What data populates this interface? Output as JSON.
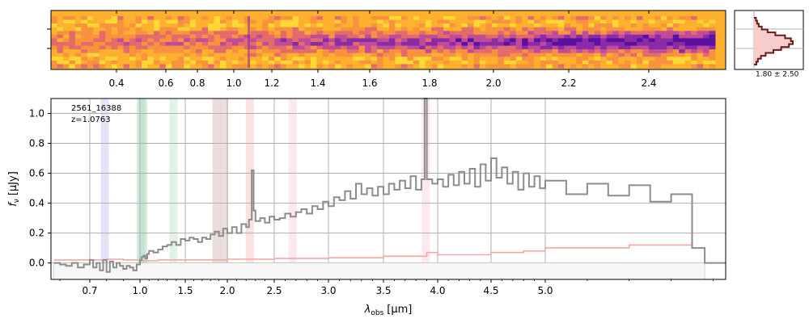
{
  "colors": {
    "spectrum": "#8c8c8c",
    "error": "#f4a6a6",
    "zero_band": "#f7f7f7",
    "grid": "#b0b0b0",
    "sky_bg": "#ffb02e",
    "hist_fill": "#f9cccc",
    "hist_line": "#6b1a1a",
    "line_purple": "#d7d0f0",
    "line_green": "#b8e0c8",
    "line_green_light": "#cfead6",
    "line_brown": "#e0c8c4",
    "line_pink": "#f6cfcf",
    "line_pink_light": "#f8d9e6"
  },
  "chart_data": [
    {
      "type": "heatmap",
      "name": "2d-spectrum",
      "x_ticks": [
        "0.4",
        "0.6",
        "0.8",
        "1.0",
        "1.2",
        "1.4",
        "1.6",
        "1.8",
        "2.0",
        "2.2",
        "2.4"
      ],
      "colormap": "plasma_r",
      "trace_row": 0.5
    },
    {
      "type": "histogram",
      "name": "residual-histogram",
      "label": "1.80 ± 2.50",
      "profile": [
        0.05,
        0.08,
        0.12,
        0.2,
        0.35,
        0.55,
        0.8,
        0.95,
        1.0,
        0.9,
        0.7,
        0.5,
        0.3,
        0.18,
        0.1,
        0.06
      ]
    },
    {
      "type": "line",
      "name": "1d-spectrum",
      "object_id": "2561_16388",
      "redshift_label": "z=1.0763",
      "xlabel": "λ_obs [μm]",
      "xlabel_main": "λ",
      "xlabel_sub": "obs",
      "xlabel_unit": "[μm]",
      "ylabel_main": "f",
      "ylabel_sub": "ν",
      "ylabel_unit": "[μJy]",
      "ylim": [
        -0.11,
        1.1
      ],
      "yticks": [
        0.0,
        0.2,
        0.4,
        0.6,
        0.8,
        1.0
      ],
      "ytick_labels": [
        "0.0",
        "0.2",
        "0.4",
        "0.6",
        "0.8",
        "1.0"
      ],
      "xtick_labels": [
        "0.7",
        "1.0",
        "1.5",
        "2.0",
        "2.5",
        "3.0",
        "3.5",
        "4.0",
        "4.5",
        "5.0"
      ],
      "xtick_values": [
        0.7,
        1.0,
        1.5,
        2.0,
        2.5,
        3.0,
        3.5,
        4.0,
        4.5,
        5.0
      ],
      "xlim": [
        0.57,
        5.43
      ],
      "emission_lines": [
        {
          "x": 0.79,
          "color": "#d7d0f0"
        },
        {
          "x": 1.01,
          "color": "#b8e0c8"
        },
        {
          "x": 1.035,
          "color": "#b8e0c8"
        },
        {
          "x": 1.37,
          "color": "#cfead6"
        },
        {
          "x": 1.87,
          "color": "#e0c8c4"
        },
        {
          "x": 1.96,
          "color": "#e0c8c4"
        },
        {
          "x": 2.24,
          "color": "#f6cfcf"
        },
        {
          "x": 2.67,
          "color": "#f8d9e6"
        },
        {
          "x": 3.89,
          "color": "#f8d9e6"
        }
      ],
      "flux": [
        [
          0.58,
          0.0
        ],
        [
          0.6,
          -0.01
        ],
        [
          0.62,
          -0.02
        ],
        [
          0.64,
          0.0
        ],
        [
          0.66,
          -0.03
        ],
        [
          0.68,
          -0.01
        ],
        [
          0.7,
          0.02
        ],
        [
          0.72,
          -0.03
        ],
        [
          0.74,
          0.0
        ],
        [
          0.76,
          -0.05
        ],
        [
          0.78,
          0.02
        ],
        [
          0.8,
          -0.06
        ],
        [
          0.82,
          0.01
        ],
        [
          0.84,
          -0.03
        ],
        [
          0.86,
          0.0
        ],
        [
          0.88,
          -0.02
        ],
        [
          0.9,
          -0.04
        ],
        [
          0.92,
          -0.02
        ],
        [
          0.94,
          -0.03
        ],
        [
          0.96,
          -0.05
        ],
        [
          0.98,
          -0.01
        ],
        [
          1.0,
          0.02
        ],
        [
          1.02,
          0.04
        ],
        [
          1.04,
          0.05
        ],
        [
          1.06,
          0.03
        ],
        [
          1.08,
          0.06
        ],
        [
          1.1,
          0.08
        ],
        [
          1.15,
          0.07
        ],
        [
          1.2,
          0.09
        ],
        [
          1.25,
          0.11
        ],
        [
          1.3,
          0.12
        ],
        [
          1.35,
          0.14
        ],
        [
          1.4,
          0.12
        ],
        [
          1.45,
          0.16
        ],
        [
          1.5,
          0.15
        ],
        [
          1.55,
          0.17
        ],
        [
          1.6,
          0.16
        ],
        [
          1.65,
          0.14
        ],
        [
          1.7,
          0.17
        ],
        [
          1.75,
          0.16
        ],
        [
          1.8,
          0.19
        ],
        [
          1.85,
          0.21
        ],
        [
          1.9,
          0.18
        ],
        [
          1.95,
          0.23
        ],
        [
          2.0,
          0.2
        ],
        [
          2.05,
          0.24
        ],
        [
          2.1,
          0.2
        ],
        [
          2.15,
          0.26
        ],
        [
          2.2,
          0.24
        ],
        [
          2.23,
          0.29
        ],
        [
          2.26,
          0.62
        ],
        [
          2.28,
          0.35
        ],
        [
          2.3,
          0.28
        ],
        [
          2.35,
          0.3
        ],
        [
          2.4,
          0.27
        ],
        [
          2.45,
          0.31
        ],
        [
          2.5,
          0.29
        ],
        [
          2.55,
          0.3
        ],
        [
          2.6,
          0.33
        ],
        [
          2.65,
          0.31
        ],
        [
          2.7,
          0.34
        ],
        [
          2.75,
          0.36
        ],
        [
          2.8,
          0.33
        ],
        [
          2.85,
          0.38
        ],
        [
          2.9,
          0.36
        ],
        [
          2.95,
          0.41
        ],
        [
          3.0,
          0.38
        ],
        [
          3.05,
          0.44
        ],
        [
          3.1,
          0.42
        ],
        [
          3.15,
          0.48
        ],
        [
          3.2,
          0.43
        ],
        [
          3.25,
          0.53
        ],
        [
          3.3,
          0.46
        ],
        [
          3.35,
          0.5
        ],
        [
          3.4,
          0.45
        ],
        [
          3.45,
          0.51
        ],
        [
          3.5,
          0.46
        ],
        [
          3.55,
          0.53
        ],
        [
          3.6,
          0.49
        ],
        [
          3.65,
          0.55
        ],
        [
          3.7,
          0.5
        ],
        [
          3.75,
          0.58
        ],
        [
          3.8,
          0.49
        ],
        [
          3.85,
          0.56
        ],
        [
          3.88,
          1.1
        ],
        [
          3.9,
          0.56
        ],
        [
          3.95,
          0.53
        ],
        [
          4.0,
          0.56
        ],
        [
          4.05,
          0.51
        ],
        [
          4.1,
          0.59
        ],
        [
          4.15,
          0.52
        ],
        [
          4.2,
          0.61
        ],
        [
          4.25,
          0.53
        ],
        [
          4.3,
          0.63
        ],
        [
          4.35,
          0.51
        ],
        [
          4.4,
          0.66
        ],
        [
          4.45,
          0.55
        ],
        [
          4.5,
          0.7
        ],
        [
          4.55,
          0.57
        ],
        [
          4.6,
          0.64
        ],
        [
          4.65,
          0.53
        ],
        [
          4.7,
          0.61
        ],
        [
          4.75,
          0.49
        ],
        [
          4.8,
          0.6
        ],
        [
          4.85,
          0.51
        ],
        [
          4.9,
          0.58
        ],
        [
          4.95,
          0.5
        ],
        [
          5.0,
          0.55
        ],
        [
          5.05,
          0.46
        ],
        [
          5.1,
          0.53
        ],
        [
          5.15,
          0.45
        ],
        [
          5.2,
          0.52
        ],
        [
          5.25,
          0.41
        ],
        [
          5.3,
          0.46
        ],
        [
          5.35,
          0.1
        ],
        [
          5.38,
          0.0
        ]
      ],
      "error": [
        [
          0.58,
          0.02
        ],
        [
          0.7,
          0.02
        ],
        [
          0.8,
          0.025
        ],
        [
          0.9,
          0.02
        ],
        [
          1.0,
          0.015
        ],
        [
          1.2,
          0.02
        ],
        [
          1.4,
          0.02
        ],
        [
          1.6,
          0.02
        ],
        [
          2.0,
          0.025
        ],
        [
          2.5,
          0.03
        ],
        [
          3.0,
          0.035
        ],
        [
          3.5,
          0.045
        ],
        [
          3.9,
          0.07
        ],
        [
          4.0,
          0.055
        ],
        [
          4.5,
          0.07
        ],
        [
          4.8,
          0.08
        ],
        [
          5.0,
          0.1
        ],
        [
          5.2,
          0.12
        ],
        [
          5.35,
          0.11
        ]
      ]
    }
  ]
}
